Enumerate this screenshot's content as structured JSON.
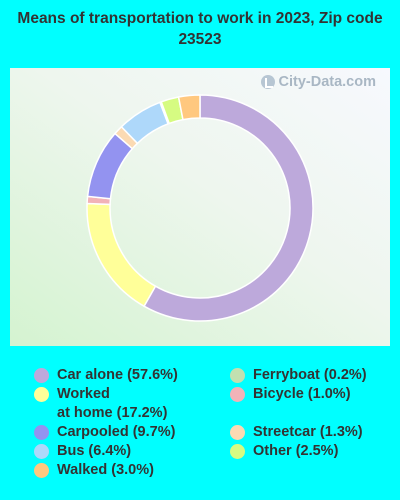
{
  "chart_data": {
    "type": "pie",
    "title": "Means of transportation to work in 2023, Zip code 23523",
    "watermark": "City-Data.com",
    "donut": true,
    "slices": [
      {
        "label": "Car alone (57.6%)",
        "value": 57.6,
        "color": "#bda9db"
      },
      {
        "label": "Worked\nat home (17.2%)",
        "value": 17.2,
        "color": "#ffff99"
      },
      {
        "label": "Bicycle (1.0%)",
        "value": 1.0,
        "color": "#f2b3b8"
      },
      {
        "label": "Carpooled (9.7%)",
        "value": 9.7,
        "color": "#9393f0"
      },
      {
        "label": "Streetcar (1.3%)",
        "value": 1.3,
        "color": "#fbdab3"
      },
      {
        "label": "Bus (6.4%)",
        "value": 6.4,
        "color": "#aed8fa"
      },
      {
        "label": "Ferryboat (0.2%)",
        "value": 0.2,
        "color": "#c2e0b0"
      },
      {
        "label": "Other (2.5%)",
        "value": 2.5,
        "color": "#d6fb82"
      },
      {
        "label": "Walked (3.0%)",
        "value": 3.0,
        "color": "#ffc87f"
      }
    ],
    "legend_order": [
      0,
      1,
      3,
      5,
      8,
      6,
      2,
      4,
      7
    ]
  }
}
